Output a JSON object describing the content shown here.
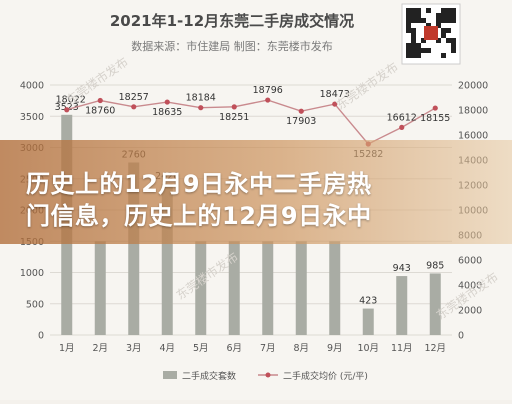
{
  "header": {
    "title": "2021年1-12月东莞二手房成交情况",
    "subtitle": "数据来源：市住建局 制图：东莞楼市发布"
  },
  "overlay": {
    "headline_line1": "历史上的12月9日永中二手房热",
    "headline_line2": "门信息，历史上的12月9日永中"
  },
  "watermark": "东莞楼市发布",
  "colors": {
    "bar": "#a9aca4",
    "line": "#c98a8e",
    "marker": "#c0505a",
    "banner": "#c4844c"
  },
  "chart_data": {
    "type": "bar",
    "categories": [
      "1月",
      "2月",
      "3月",
      "4月",
      "5月",
      "6月",
      "7月",
      "8月",
      "9月",
      "10月",
      "11月",
      "12月"
    ],
    "series": [
      {
        "name": "二手成交套数",
        "type": "bar",
        "values": [
          3523,
          1500,
          2760,
          2420,
          1500,
          1500,
          1500,
          1500,
          1500,
          423,
          943,
          985
        ]
      },
      {
        "name": "二手成交均价 (元/平)",
        "type": "line",
        "axis": "right",
        "values": [
          18022,
          18760,
          18257,
          18635,
          18184,
          18251,
          18796,
          17903,
          18473,
          15282,
          16612,
          18155
        ]
      }
    ],
    "bar_labels": [
      "3523",
      "",
      "2760",
      "2420",
      "",
      "",
      "",
      "",
      "",
      "423",
      "943",
      "985"
    ],
    "left_ticks": [
      "0",
      "500",
      "1000",
      "1500",
      "2000",
      "2500",
      "3000",
      "3500",
      "4000"
    ],
    "right_ticks": [
      "0",
      "2000",
      "4000",
      "6000",
      "8000",
      "10000",
      "12000",
      "14000",
      "16000",
      "18000",
      "20000"
    ],
    "ylim_left": [
      0,
      4000
    ],
    "ylim_right": [
      0,
      20000
    ],
    "grid": true,
    "legend_position": "bottom"
  }
}
